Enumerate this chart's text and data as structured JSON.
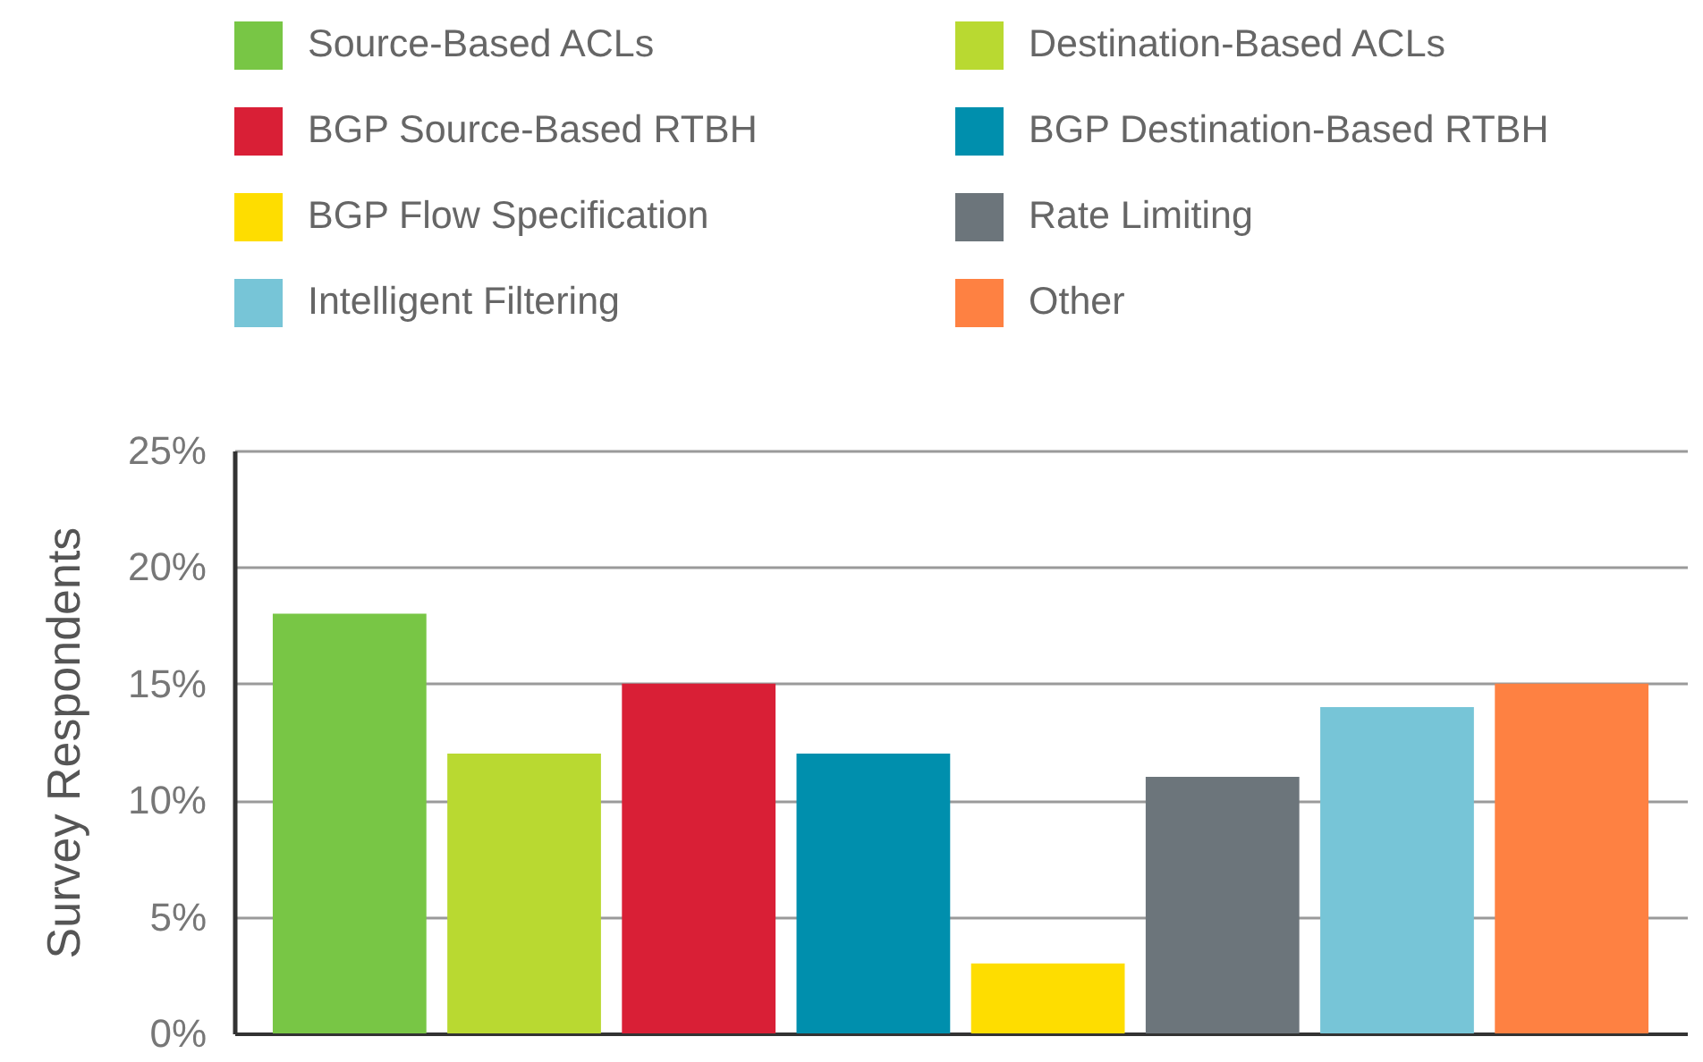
{
  "chart_data": {
    "type": "bar",
    "ylabel": "Survey Respondents",
    "categories": [
      null,
      null,
      null,
      null,
      null,
      null,
      null,
      null
    ],
    "series": [
      {
        "name": "Source-Based ACLs",
        "color": "#78c645",
        "values": [
          18,
          null,
          null,
          null,
          null,
          null,
          null,
          null
        ]
      },
      {
        "name": "Destination-Based ACLs",
        "color": "#b9d931",
        "values": [
          null,
          12,
          null,
          null,
          null,
          null,
          null,
          null
        ]
      },
      {
        "name": "BGP Source-Based RTBH",
        "color": "#d91f36",
        "values": [
          null,
          null,
          15,
          null,
          null,
          null,
          null,
          null
        ]
      },
      {
        "name": "BGP Destination-Based RTBH",
        "color": "#008fad",
        "values": [
          null,
          null,
          null,
          12,
          null,
          null,
          null,
          null
        ]
      },
      {
        "name": "BGP Flow Specification",
        "color": "#fedd00",
        "values": [
          null,
          null,
          null,
          null,
          3,
          null,
          null,
          null
        ]
      },
      {
        "name": "Rate Limiting",
        "color": "#6c757b",
        "values": [
          null,
          null,
          null,
          null,
          null,
          11,
          null,
          null
        ]
      },
      {
        "name": "Intelligent Filtering",
        "color": "#77c5d7",
        "values": [
          null,
          null,
          null,
          null,
          null,
          null,
          14,
          null
        ]
      },
      {
        "name": "Other",
        "color": "#fe8142",
        "values": [
          null,
          null,
          null,
          null,
          null,
          null,
          null,
          15
        ]
      }
    ],
    "ylim": [
      0,
      25
    ],
    "yticks": [
      {
        "value": 0,
        "label": "0%"
      },
      {
        "value": 5,
        "label": "5%"
      },
      {
        "value": 10,
        "label": "10%"
      },
      {
        "value": 15,
        "label": "15%"
      },
      {
        "value": 20,
        "label": "20%"
      },
      {
        "value": 25,
        "label": "25%"
      }
    ],
    "grid": "y",
    "legend": "top",
    "tick_labels": "y"
  }
}
